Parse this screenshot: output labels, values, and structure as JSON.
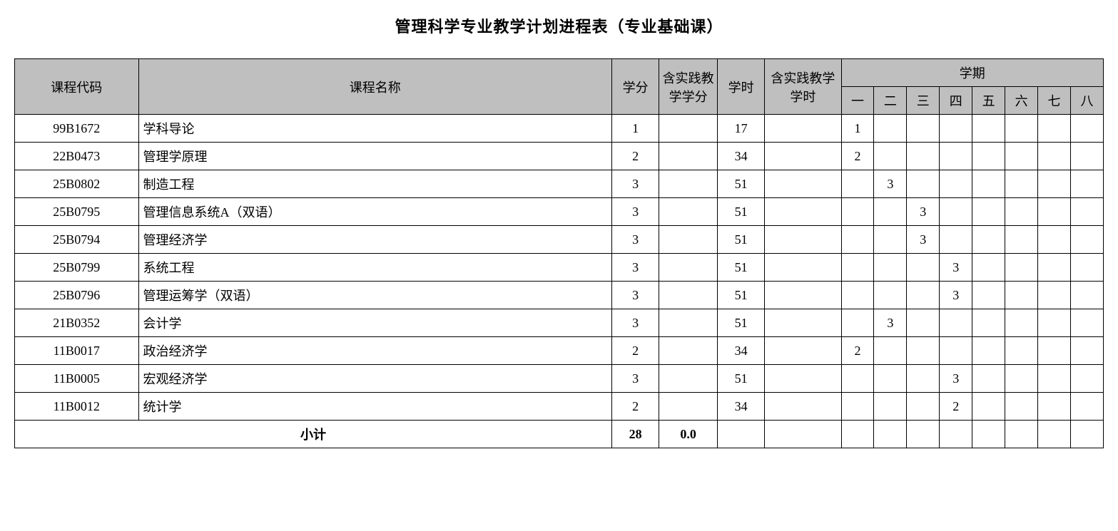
{
  "title": "管理科学专业教学计划进程表（专业基础课）",
  "table": {
    "headers": {
      "code": "课程代码",
      "name": "课程名称",
      "credit": "学分",
      "practice_credit": "含实践教学学分",
      "hours": "学时",
      "practice_hours": "含实践教学学时",
      "semester_group": "学期",
      "semesters": [
        "一",
        "二",
        "三",
        "四",
        "五",
        "六",
        "七",
        "八"
      ]
    },
    "rows": [
      {
        "code": "99B1672",
        "name": "学科导论",
        "credit": "1",
        "practice_credit": "",
        "hours": "17",
        "practice_hours": "",
        "sems": [
          "1",
          "",
          "",
          "",
          "",
          "",
          "",
          ""
        ]
      },
      {
        "code": "22B0473",
        "name": "管理学原理",
        "credit": "2",
        "practice_credit": "",
        "hours": "34",
        "practice_hours": "",
        "sems": [
          "2",
          "",
          "",
          "",
          "",
          "",
          "",
          ""
        ]
      },
      {
        "code": "25B0802",
        "name": "制造工程",
        "credit": "3",
        "practice_credit": "",
        "hours": "51",
        "practice_hours": "",
        "sems": [
          "",
          "3",
          "",
          "",
          "",
          "",
          "",
          ""
        ]
      },
      {
        "code": "25B0795",
        "name": "管理信息系统A（双语）",
        "credit": "3",
        "practice_credit": "",
        "hours": "51",
        "practice_hours": "",
        "sems": [
          "",
          "",
          "3",
          "",
          "",
          "",
          "",
          ""
        ]
      },
      {
        "code": "25B0794",
        "name": "管理经济学",
        "credit": "3",
        "practice_credit": "",
        "hours": "51",
        "practice_hours": "",
        "sems": [
          "",
          "",
          "3",
          "",
          "",
          "",
          "",
          ""
        ]
      },
      {
        "code": "25B0799",
        "name": "系统工程",
        "credit": "3",
        "practice_credit": "",
        "hours": "51",
        "practice_hours": "",
        "sems": [
          "",
          "",
          "",
          "3",
          "",
          "",
          "",
          ""
        ]
      },
      {
        "code": "25B0796",
        "name": "管理运筹学（双语）",
        "credit": "3",
        "practice_credit": "",
        "hours": "51",
        "practice_hours": "",
        "sems": [
          "",
          "",
          "",
          "3",
          "",
          "",
          "",
          ""
        ]
      },
      {
        "code": "21B0352",
        "name": "会计学",
        "credit": "3",
        "practice_credit": "",
        "hours": "51",
        "practice_hours": "",
        "sems": [
          "",
          "3",
          "",
          "",
          "",
          "",
          "",
          ""
        ]
      },
      {
        "code": "11B0017",
        "name": "政治经济学",
        "credit": "2",
        "practice_credit": "",
        "hours": "34",
        "practice_hours": "",
        "sems": [
          "2",
          "",
          "",
          "",
          "",
          "",
          "",
          ""
        ]
      },
      {
        "code": "11B0005",
        "name": "宏观经济学",
        "credit": "3",
        "practice_credit": "",
        "hours": "51",
        "practice_hours": "",
        "sems": [
          "",
          "",
          "",
          "3",
          "",
          "",
          "",
          ""
        ]
      },
      {
        "code": "11B0012",
        "name": "统计学",
        "credit": "2",
        "practice_credit": "",
        "hours": "34",
        "practice_hours": "",
        "sems": [
          "",
          "",
          "",
          "2",
          "",
          "",
          "",
          ""
        ]
      }
    ],
    "subtotal": {
      "label": "小计",
      "credit": "28",
      "practice_credit": "0.0",
      "hours": "",
      "practice_hours": "",
      "sems": [
        "",
        "",
        "",
        "",
        "",
        "",
        "",
        ""
      ]
    }
  },
  "style": {
    "header_bg": "#bfbfbf",
    "border_color": "#000000",
    "body_bg": "#ffffff",
    "title_fontsize": 22,
    "cell_fontsize": 18
  }
}
